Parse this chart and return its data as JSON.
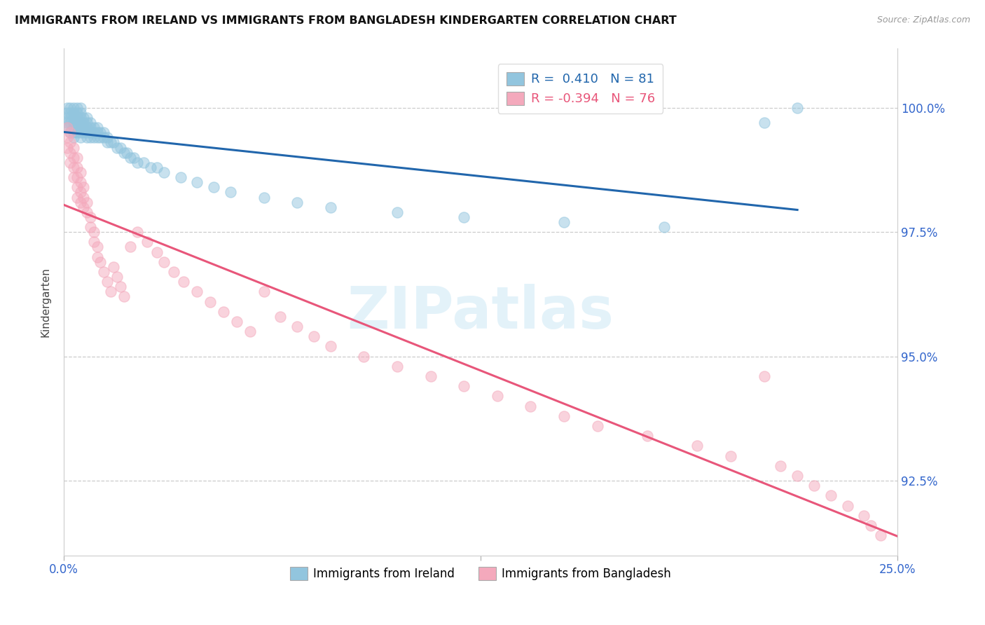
{
  "title": "IMMIGRANTS FROM IRELAND VS IMMIGRANTS FROM BANGLADESH KINDERGARTEN CORRELATION CHART",
  "source": "Source: ZipAtlas.com",
  "ylabel": "Kindergarten",
  "xlim": [
    0.0,
    0.25
  ],
  "ylim": [
    91.0,
    101.2
  ],
  "yticks": [
    92.5,
    95.0,
    97.5,
    100.0
  ],
  "ytick_labels": [
    "92.5%",
    "95.0%",
    "97.5%",
    "100.0%"
  ],
  "legend_ireland": "Immigrants from Ireland",
  "legend_bangladesh": "Immigrants from Bangladesh",
  "R_ireland": 0.41,
  "N_ireland": 81,
  "R_bangladesh": -0.394,
  "N_bangladesh": 76,
  "color_ireland": "#92c5de",
  "color_bangladesh": "#f4a9bc",
  "color_ireland_line": "#2166ac",
  "color_bangladesh_line": "#e8567a",
  "watermark": "ZIPatlas",
  "ireland_x": [
    0.001,
    0.001,
    0.001,
    0.001,
    0.001,
    0.002,
    0.002,
    0.002,
    0.002,
    0.002,
    0.003,
    0.003,
    0.003,
    0.003,
    0.003,
    0.003,
    0.003,
    0.004,
    0.004,
    0.004,
    0.004,
    0.004,
    0.004,
    0.005,
    0.005,
    0.005,
    0.005,
    0.005,
    0.005,
    0.005,
    0.006,
    0.006,
    0.006,
    0.006,
    0.007,
    0.007,
    0.007,
    0.007,
    0.007,
    0.008,
    0.008,
    0.008,
    0.008,
    0.009,
    0.009,
    0.009,
    0.01,
    0.01,
    0.01,
    0.011,
    0.011,
    0.012,
    0.012,
    0.013,
    0.013,
    0.014,
    0.015,
    0.016,
    0.017,
    0.018,
    0.019,
    0.02,
    0.021,
    0.022,
    0.024,
    0.026,
    0.028,
    0.03,
    0.035,
    0.04,
    0.045,
    0.05,
    0.06,
    0.07,
    0.08,
    0.1,
    0.12,
    0.15,
    0.18,
    0.21,
    0.22
  ],
  "ireland_y": [
    99.8,
    99.9,
    100.0,
    99.7,
    99.6,
    99.8,
    99.9,
    100.0,
    99.7,
    99.5,
    99.9,
    100.0,
    99.8,
    99.7,
    99.6,
    99.5,
    99.4,
    99.9,
    100.0,
    99.8,
    99.7,
    99.6,
    99.5,
    99.9,
    100.0,
    99.8,
    99.7,
    99.6,
    99.5,
    99.4,
    99.8,
    99.7,
    99.6,
    99.5,
    99.8,
    99.7,
    99.6,
    99.5,
    99.4,
    99.7,
    99.6,
    99.5,
    99.4,
    99.6,
    99.5,
    99.4,
    99.6,
    99.5,
    99.4,
    99.5,
    99.4,
    99.5,
    99.4,
    99.4,
    99.3,
    99.3,
    99.3,
    99.2,
    99.2,
    99.1,
    99.1,
    99.0,
    99.0,
    98.9,
    98.9,
    98.8,
    98.8,
    98.7,
    98.6,
    98.5,
    98.4,
    98.3,
    98.2,
    98.1,
    98.0,
    97.9,
    97.8,
    97.7,
    97.6,
    99.7,
    100.0
  ],
  "bangladesh_x": [
    0.001,
    0.001,
    0.001,
    0.002,
    0.002,
    0.002,
    0.002,
    0.003,
    0.003,
    0.003,
    0.003,
    0.004,
    0.004,
    0.004,
    0.004,
    0.004,
    0.005,
    0.005,
    0.005,
    0.005,
    0.006,
    0.006,
    0.006,
    0.007,
    0.007,
    0.008,
    0.008,
    0.009,
    0.009,
    0.01,
    0.01,
    0.011,
    0.012,
    0.013,
    0.014,
    0.015,
    0.016,
    0.017,
    0.018,
    0.02,
    0.022,
    0.025,
    0.028,
    0.03,
    0.033,
    0.036,
    0.04,
    0.044,
    0.048,
    0.052,
    0.056,
    0.06,
    0.065,
    0.07,
    0.075,
    0.08,
    0.09,
    0.1,
    0.11,
    0.12,
    0.13,
    0.14,
    0.15,
    0.16,
    0.175,
    0.19,
    0.2,
    0.21,
    0.215,
    0.22,
    0.225,
    0.23,
    0.235,
    0.24,
    0.242,
    0.245
  ],
  "bangladesh_y": [
    99.6,
    99.4,
    99.2,
    99.5,
    99.3,
    99.1,
    98.9,
    99.2,
    99.0,
    98.8,
    98.6,
    99.0,
    98.8,
    98.6,
    98.4,
    98.2,
    98.7,
    98.5,
    98.3,
    98.1,
    98.4,
    98.2,
    98.0,
    98.1,
    97.9,
    97.8,
    97.6,
    97.5,
    97.3,
    97.2,
    97.0,
    96.9,
    96.7,
    96.5,
    96.3,
    96.8,
    96.6,
    96.4,
    96.2,
    97.2,
    97.5,
    97.3,
    97.1,
    96.9,
    96.7,
    96.5,
    96.3,
    96.1,
    95.9,
    95.7,
    95.5,
    96.3,
    95.8,
    95.6,
    95.4,
    95.2,
    95.0,
    94.8,
    94.6,
    94.4,
    94.2,
    94.0,
    93.8,
    93.6,
    93.4,
    93.2,
    93.0,
    94.6,
    92.8,
    92.6,
    92.4,
    92.2,
    92.0,
    91.8,
    91.6,
    91.4
  ]
}
